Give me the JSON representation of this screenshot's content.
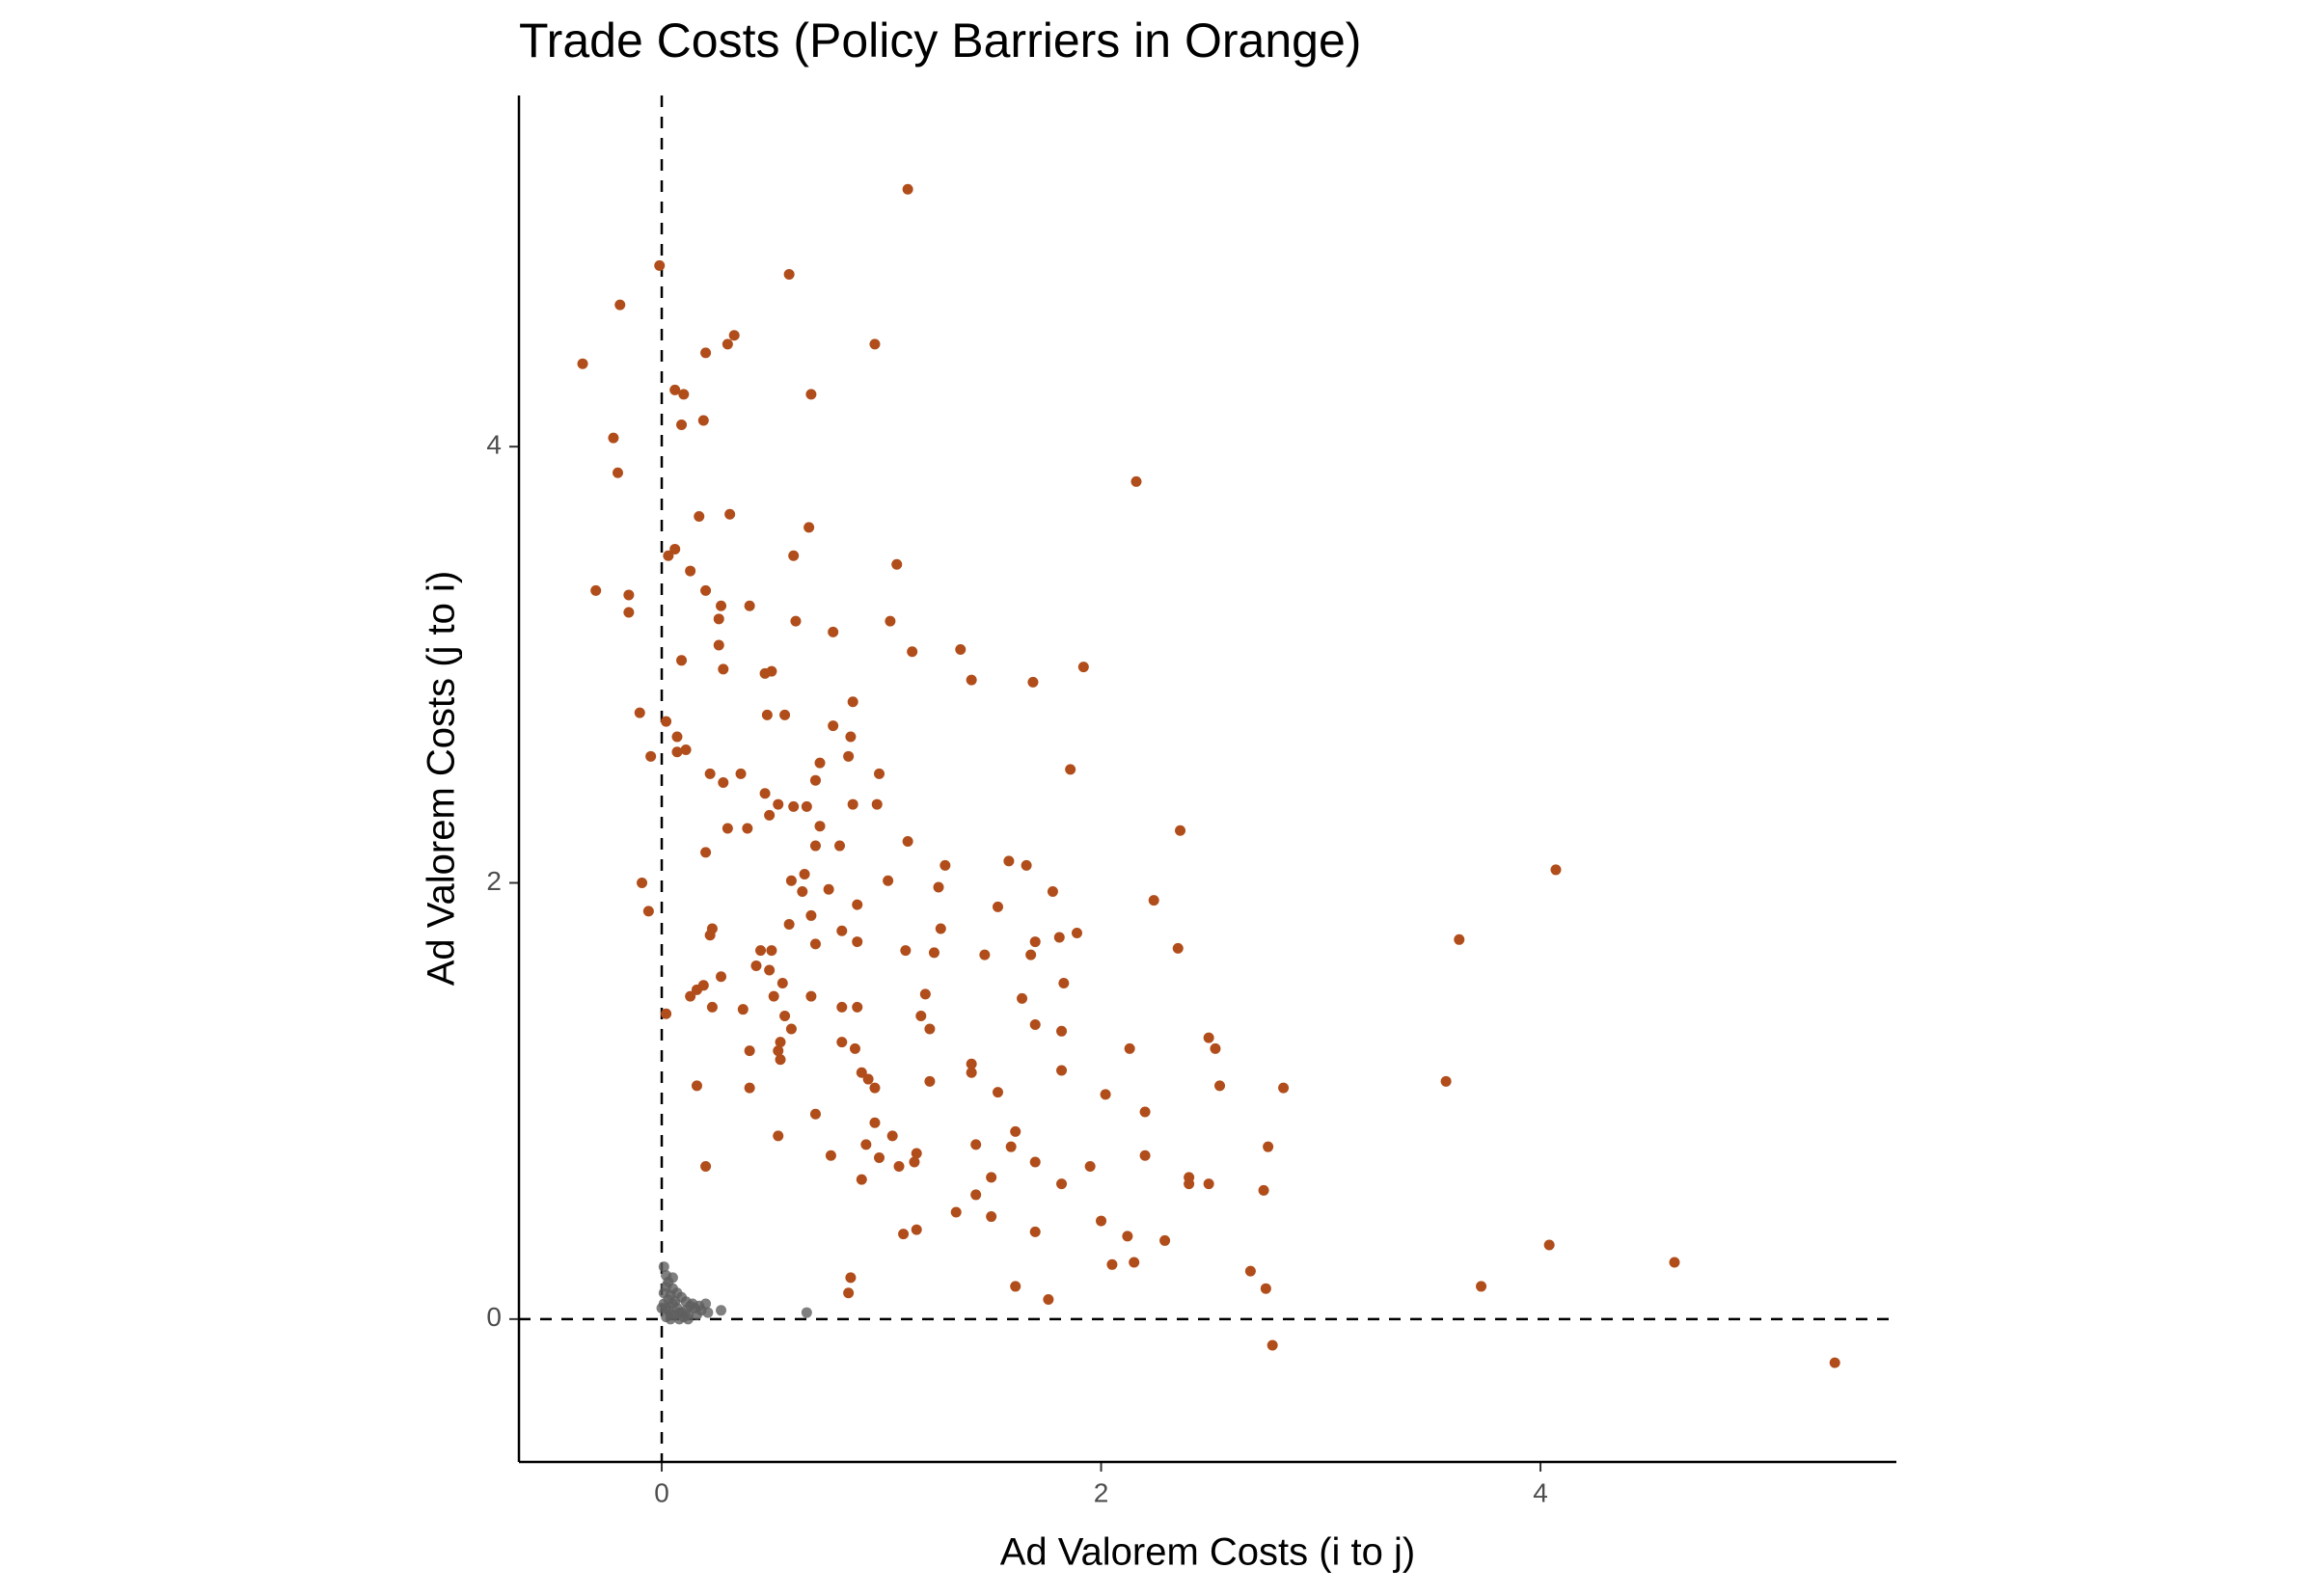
{
  "chart_data": {
    "type": "scatter",
    "title": "Trade Costs (Policy Barriers in Orange)",
    "x_label": "Ad Valorem Costs (i to j)",
    "y_label": "Ad Valorem Costs (j to i)",
    "xlim": [
      -0.65,
      5.62
    ],
    "ylim": [
      -0.655,
      5.61
    ],
    "xticks": [
      0,
      2,
      4
    ],
    "yticks": [
      0,
      2,
      4
    ],
    "hlines": [
      0
    ],
    "vlines": [
      0
    ],
    "series": [
      {
        "color": "#b04d1b",
        "x": [
          1.12,
          0.58,
          -0.01,
          -0.19,
          -0.36,
          0.33,
          0.3,
          0.97,
          0.2,
          0.06,
          0.1,
          0.68,
          0.19,
          0.09,
          -0.22,
          -0.2,
          2.16,
          0.17,
          0.31,
          0.67,
          0.06,
          0.03,
          0.6,
          1.07,
          0.13,
          -0.3,
          -0.15,
          0.2,
          0.27,
          0.4,
          -0.15,
          0.26,
          0.61,
          1.04,
          0.78,
          0.26,
          1.14,
          1.36,
          0.09,
          0.28,
          1.92,
          0.47,
          0.5,
          1.41,
          1.69,
          0.87,
          -0.1,
          0.48,
          0.56,
          0.02,
          0.78,
          0.86,
          0.07,
          0.07,
          0.11,
          -0.05,
          0.85,
          0.72,
          0.22,
          0.36,
          0.99,
          1.86,
          0.28,
          0.7,
          0.47,
          0.53,
          0.66,
          0.98,
          0.87,
          0.49,
          0.6,
          0.39,
          0.3,
          0.72,
          2.36,
          1.12,
          0.81,
          0.7,
          0.2,
          1.58,
          1.66,
          1.29,
          4.07,
          0.65,
          1.03,
          -0.09,
          0.59,
          1.26,
          0.76,
          0.64,
          1.78,
          2.24,
          1.53,
          0.89,
          -0.06,
          0.68,
          0.58,
          0.23,
          1.27,
          0.82,
          0.22,
          1.89,
          1.81,
          3.63,
          1.7,
          0.7,
          0.89,
          1.11,
          0.45,
          0.5,
          1.24,
          2.35,
          1.47,
          1.68,
          0.43,
          0.49,
          0.27,
          1.83,
          0.55,
          0.19,
          0.16,
          0.13,
          1.2,
          0.51,
          0.68,
          1.64,
          0.82,
          0.23,
          0.89,
          0.37,
          0.02,
          1.18,
          0.56,
          1.7,
          1.22,
          0.59,
          1.82,
          2.49,
          0.82,
          0.54,
          2.52,
          2.13,
          0.4,
          0.53,
          0.88,
          0.54,
          1.41,
          1.82,
          1.41,
          0.91,
          0.94,
          1.22,
          3.57,
          0.16,
          2.54,
          2.83,
          0.4,
          0.97,
          1.53,
          2.02,
          2.2,
          0.7,
          0.97,
          1.61,
          1.05,
          0.53,
          1.16,
          1.59,
          1.43,
          2.76,
          0.93,
          0.77,
          2.2,
          0.99,
          1.7,
          1.15,
          1.95,
          0.2,
          1.08,
          1.5,
          2.4,
          2.4,
          2.49,
          0.91,
          1.82,
          2.74,
          1.43,
          1.34,
          1.5,
          2.0,
          1.16,
          1.7,
          1.1,
          2.12,
          2.29,
          4.04,
          4.61,
          2.15,
          2.05,
          2.68,
          0.86,
          1.61,
          3.73,
          2.75,
          0.85,
          1.76,
          2.78,
          5.34
        ],
        "values": [
          5.18,
          4.79,
          4.83,
          4.65,
          4.38,
          4.51,
          4.47,
          4.47,
          4.43,
          4.26,
          4.24,
          4.24,
          4.12,
          4.1,
          4.04,
          3.88,
          3.84,
          3.68,
          3.69,
          3.63,
          3.53,
          3.5,
          3.5,
          3.46,
          3.43,
          3.34,
          3.32,
          3.34,
          3.27,
          3.27,
          3.24,
          3.21,
          3.2,
          3.2,
          3.15,
          3.09,
          3.06,
          3.07,
          3.02,
          2.98,
          2.99,
          2.96,
          2.97,
          2.93,
          2.92,
          2.83,
          2.78,
          2.77,
          2.77,
          2.74,
          2.72,
          2.67,
          2.67,
          2.6,
          2.61,
          2.58,
          2.58,
          2.55,
          2.5,
          2.5,
          2.5,
          2.52,
          2.46,
          2.47,
          2.41,
          2.36,
          2.35,
          2.36,
          2.36,
          2.31,
          2.35,
          2.25,
          2.25,
          2.26,
          2.24,
          2.19,
          2.17,
          2.17,
          2.14,
          2.1,
          2.08,
          2.08,
          2.06,
          2.04,
          2.01,
          2.0,
          2.01,
          1.98,
          1.97,
          1.96,
          1.96,
          1.92,
          1.89,
          1.9,
          1.87,
          1.85,
          1.81,
          1.79,
          1.79,
          1.78,
          1.76,
          1.77,
          1.75,
          1.74,
          1.73,
          1.72,
          1.73,
          1.69,
          1.69,
          1.69,
          1.68,
          1.7,
          1.67,
          1.67,
          1.62,
          1.6,
          1.57,
          1.54,
          1.54,
          1.53,
          1.51,
          1.48,
          1.49,
          1.48,
          1.48,
          1.47,
          1.43,
          1.43,
          1.43,
          1.42,
          1.4,
          1.39,
          1.39,
          1.35,
          1.33,
          1.33,
          1.32,
          1.29,
          1.27,
          1.27,
          1.24,
          1.24,
          1.23,
          1.23,
          1.24,
          1.19,
          1.17,
          1.14,
          1.13,
          1.13,
          1.1,
          1.09,
          1.09,
          1.07,
          1.07,
          1.06,
          1.06,
          1.06,
          1.04,
          1.03,
          0.95,
          0.94,
          0.9,
          0.86,
          0.84,
          0.84,
          0.76,
          0.79,
          0.8,
          0.79,
          0.8,
          0.75,
          0.75,
          0.74,
          0.72,
          0.72,
          0.7,
          0.7,
          0.7,
          0.65,
          0.65,
          0.62,
          0.62,
          0.64,
          0.62,
          0.59,
          0.57,
          0.49,
          0.47,
          0.45,
          0.41,
          0.4,
          0.39,
          0.38,
          0.36,
          0.34,
          0.26,
          0.26,
          0.25,
          0.22,
          0.19,
          0.15,
          0.15,
          0.14,
          0.12,
          0.09,
          -0.12,
          -0.2
        ]
      },
      {
        "color": "#5f5f5f",
        "x": [
          0.01,
          0.02,
          0.03,
          0.05,
          0.07,
          0.09,
          0.11,
          0.13,
          0.15,
          0.18,
          0.21,
          0.02,
          0.04,
          0.06,
          0.08,
          0.1,
          0.12,
          0.03,
          0.05,
          0.07,
          0.01,
          0.02,
          0.04,
          0.06,
          0.14,
          0.17,
          0.09,
          0.11,
          0.03,
          0.27,
          0.66,
          0.0,
          0.01,
          0.05,
          0.08,
          0.12,
          0.2,
          0.16,
          0.02,
          0.04
        ],
        "values": [
          0.24,
          0.2,
          0.17,
          0.14,
          0.12,
          0.1,
          0.08,
          0.06,
          0.05,
          0.04,
          0.03,
          0.01,
          0.0,
          0.02,
          0.03,
          0.01,
          0.02,
          0.09,
          0.07,
          0.05,
          0.12,
          0.15,
          0.11,
          0.08,
          0.07,
          0.06,
          0.03,
          0.04,
          0.04,
          0.04,
          0.03,
          0.05,
          0.07,
          0.19,
          0.0,
          0.0,
          0.07,
          0.02,
          0.05,
          0.02
        ]
      }
    ]
  }
}
